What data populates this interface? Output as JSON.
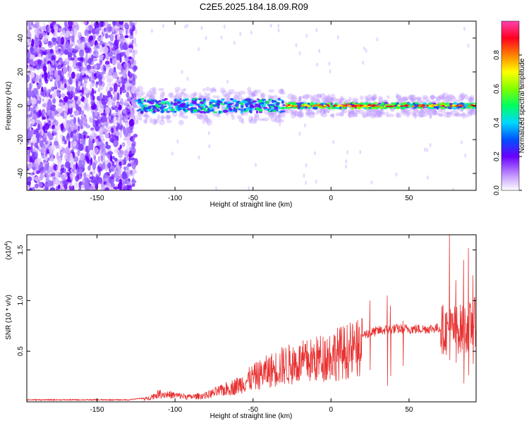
{
  "title": "C2E5.2025.184.18.09.R09",
  "top_chart": {
    "type": "heatmap",
    "xlabel": "Height of straight line (km)",
    "ylabel": "Frequency (Hz)",
    "xlim": [
      -195,
      93
    ],
    "ylim": [
      -50,
      50
    ],
    "xticks": [
      -150,
      -100,
      -50,
      0,
      50
    ],
    "yticks": [
      40,
      20,
      0,
      -20,
      -40
    ],
    "colorbar_label": "Normalized spectral amplitude",
    "colorbar_ticks": [
      0.0,
      0.2,
      0.4,
      0.6,
      0.8
    ],
    "colorbar_range": [
      0,
      1
    ]
  },
  "bottom_chart": {
    "type": "line",
    "xlabel": "Height of straight line (km)",
    "ylabel": "SNR (10 * v/v)",
    "yscale_label": "(x10",
    "yscale_exp": "4",
    "yscale_close": ")",
    "xlim": [
      -195,
      93
    ],
    "ylim": [
      0,
      1.65
    ],
    "xticks": [
      -150,
      -100,
      -50,
      0,
      50
    ],
    "yticks": [
      0.5,
      1.0,
      1.5
    ],
    "series_color": "#e83030",
    "envelope": [
      [
        -195,
        0.02
      ],
      [
        -130,
        0.02
      ],
      [
        -118,
        0.04
      ],
      [
        -110,
        0.1
      ],
      [
        -100,
        0.08
      ],
      [
        -90,
        0.06
      ],
      [
        -80,
        0.08
      ],
      [
        -70,
        0.14
      ],
      [
        -60,
        0.2
      ],
      [
        -50,
        0.3
      ],
      [
        -40,
        0.38
      ],
      [
        -30,
        0.45
      ],
      [
        -20,
        0.48
      ],
      [
        -10,
        0.52
      ],
      [
        0,
        0.58
      ],
      [
        10,
        0.62
      ],
      [
        20,
        0.66
      ],
      [
        30,
        0.7
      ],
      [
        40,
        0.72
      ],
      [
        50,
        0.72
      ],
      [
        60,
        0.72
      ],
      [
        70,
        0.73
      ],
      [
        75,
        0.7
      ],
      [
        80,
        0.72
      ],
      [
        85,
        0.72
      ],
      [
        90,
        0.75
      ],
      [
        93,
        0.8
      ]
    ],
    "spikes": [
      [
        25,
        1.0
      ],
      [
        36,
        1.05
      ],
      [
        38,
        0.95
      ],
      [
        46,
        0.8
      ],
      [
        76,
        1.65
      ],
      [
        80,
        1.2
      ],
      [
        85,
        1.4
      ],
      [
        88,
        1.52
      ],
      [
        91,
        1.25
      ]
    ]
  }
}
